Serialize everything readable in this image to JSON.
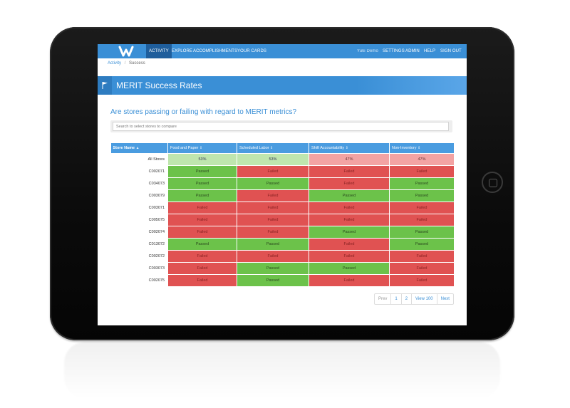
{
  "nav": {
    "items": [
      "ACTIVITY",
      "EXPLORE",
      "ACCOMPLISHMENTS",
      "YOUR CARDS"
    ],
    "right_items": [
      "Yuki Demo",
      "SETTINGS",
      "ADMIN",
      "HELP",
      "SIGN OUT"
    ]
  },
  "breadcrumb": {
    "root": "Activity",
    "separator": "/",
    "current": "Success"
  },
  "page": {
    "title": "MERIT Success Rates",
    "question": "Are stores passing or failing with regard to MERIT metrics?"
  },
  "search": {
    "placeholder": "Search to select stores to compare",
    "value": ""
  },
  "table": {
    "headers": [
      "Store Name",
      "Food and Paper",
      "Scheduled Labor",
      "Shift Accountability",
      "Non-Inventory"
    ],
    "summary": {
      "store": "All Stores",
      "values": [
        "53%",
        "53%",
        "47%",
        "47%"
      ]
    },
    "rows": [
      {
        "store": "C002071",
        "values": [
          "Passed",
          "Failed",
          "Failed",
          "Failed"
        ]
      },
      {
        "store": "C034073",
        "values": [
          "Passed",
          "Passed",
          "Failed",
          "Passed"
        ]
      },
      {
        "store": "C003079",
        "values": [
          "Passed",
          "Failed",
          "Passed",
          "Passed"
        ]
      },
      {
        "store": "C003071",
        "values": [
          "Failed",
          "Failed",
          "Failed",
          "Failed"
        ]
      },
      {
        "store": "C005075",
        "values": [
          "Failed",
          "Failed",
          "Failed",
          "Failed"
        ]
      },
      {
        "store": "C002074",
        "values": [
          "Failed",
          "Failed",
          "Passed",
          "Passed"
        ]
      },
      {
        "store": "C013072",
        "values": [
          "Passed",
          "Passed",
          "Failed",
          "Passed"
        ]
      },
      {
        "store": "C002072",
        "values": [
          "Failed",
          "Failed",
          "Failed",
          "Failed"
        ]
      },
      {
        "store": "C003073",
        "values": [
          "Failed",
          "Passed",
          "Passed",
          "Failed"
        ]
      },
      {
        "store": "C002075",
        "values": [
          "Failed",
          "Passed",
          "Failed",
          "Failed"
        ]
      }
    ]
  },
  "pagination": {
    "prev": "Prev",
    "pages": [
      "1",
      "2"
    ],
    "view": "View 100",
    "next": "Next"
  },
  "colors": {
    "accent": "#3a8fd6",
    "passed": "#6cc24a",
    "failed": "#e05252"
  },
  "icons": {
    "banner": "flag-icon",
    "sort": "sort-icon",
    "logo": "w-logo"
  }
}
